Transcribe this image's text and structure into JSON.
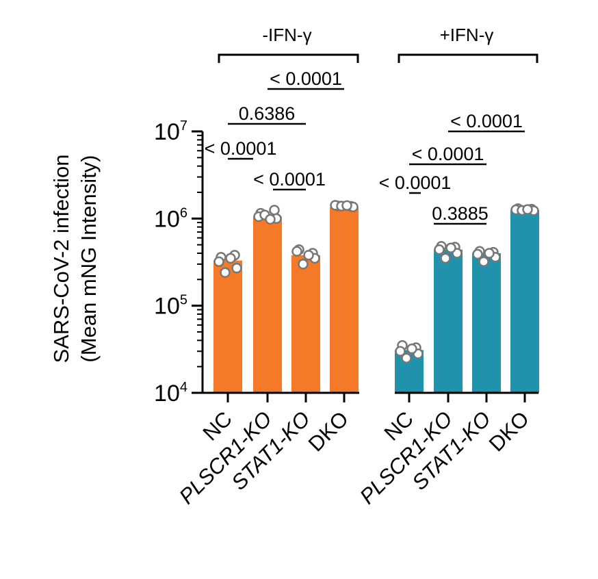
{
  "chart_data": {
    "type": "bar",
    "yscale": "log",
    "ylim": [
      10000,
      10000000
    ],
    "y_ticks": [
      {
        "base": "10",
        "exp": "4"
      },
      {
        "base": "10",
        "exp": "5"
      },
      {
        "base": "10",
        "exp": "6"
      },
      {
        "base": "10",
        "exp": "7"
      }
    ],
    "ylabel": [
      "SARS-CoV-2 infection",
      "(Mean mNG Intensity)"
    ],
    "grid": false,
    "groups": [
      {
        "label": "-IFN-γ",
        "color": "#F47A2A",
        "categories": [
          {
            "name": "NC",
            "italic": false,
            "mean": 330000,
            "points": [
              360000,
              380000,
              320000,
              270000,
              240000,
              350000
            ]
          },
          {
            "name": "PLSCR1-KO",
            "italic": true,
            "mean": 1050000,
            "points": [
              1150000,
              1250000,
              1050000,
              1000000,
              1100000,
              980000
            ]
          },
          {
            "name": "STAT1-KO",
            "italic": true,
            "mean": 380000,
            "points": [
              440000,
              400000,
              420000,
              350000,
              300000,
              380000
            ]
          },
          {
            "name": "DKO",
            "italic": false,
            "mean": 1350000,
            "points": [
              1400000,
              1380000,
              1420000,
              1360000,
              1390000,
              1410000
            ]
          }
        ]
      },
      {
        "label": "+IFN-γ",
        "color": "#2192AB",
        "categories": [
          {
            "name": "NC",
            "italic": false,
            "mean": 31000,
            "points": [
              35000,
              33000,
              30000,
              28000,
              25000,
              32000
            ]
          },
          {
            "name": "PLSCR1-KO",
            "italic": true,
            "mean": 440000,
            "points": [
              480000,
              470000,
              440000,
              400000,
              350000,
              460000
            ]
          },
          {
            "name": "STAT1-KO",
            "italic": true,
            "mean": 400000,
            "points": [
              420000,
              410000,
              390000,
              360000,
              320000,
              400000
            ]
          },
          {
            "name": "DKO",
            "italic": false,
            "mean": 1250000,
            "points": [
              1300000,
              1280000,
              1260000,
              1230000,
              1240000,
              1270000
            ]
          }
        ]
      }
    ],
    "comparisons": [
      {
        "group": 0,
        "from": 0,
        "to": 1,
        "label": "< 0.0001"
      },
      {
        "group": 0,
        "from": 1,
        "to": 3,
        "label": "< 0.0001"
      },
      {
        "group": 0,
        "from": 0,
        "to": 2,
        "label": "0.6386"
      },
      {
        "group": 0,
        "from": 2,
        "to": 3,
        "label": "< 0.0001"
      },
      {
        "group": 1,
        "from": 0,
        "to": 1,
        "label": "< 0.0001"
      },
      {
        "group": 1,
        "from": 0,
        "to": 2,
        "label": "< 0.0001"
      },
      {
        "group": 1,
        "from": 1,
        "to": 3,
        "label": "< 0.0001"
      },
      {
        "group": 1,
        "from": 1,
        "to": 2,
        "label": "0.3885"
      }
    ]
  }
}
